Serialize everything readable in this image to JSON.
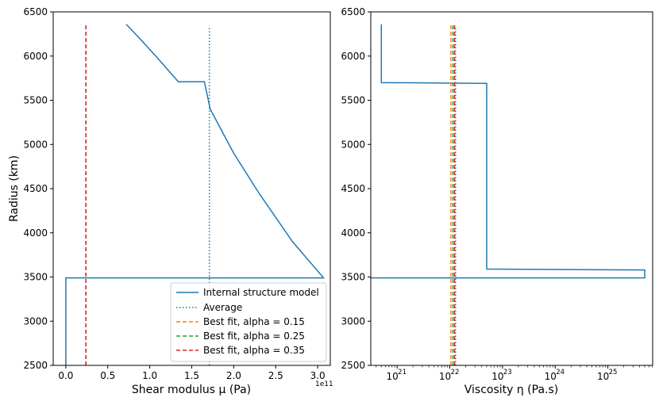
{
  "colors": {
    "model": "#1f77b4",
    "average": "#1f77b4",
    "fit015": "#ff7f0e",
    "fit025": "#2ca02c",
    "fit035": "#d62728",
    "axis": "#000000"
  },
  "chart_data": [
    {
      "type": "line",
      "id": "left",
      "xlabel": "Shear modulus μ (Pa)",
      "ylabel": "Radius (km)",
      "x_offset_label": "1e11",
      "xlim": [
        -0.15,
        3.15
      ],
      "ylim": [
        2500,
        6500
      ],
      "x_ticks": [
        0.0,
        0.5,
        1.0,
        1.5,
        2.0,
        2.5,
        3.0
      ],
      "x_tick_labels": [
        "0.0",
        "0.5",
        "1.0",
        "1.5",
        "2.0",
        "2.5",
        "3.0"
      ],
      "y_ticks": [
        2500,
        3000,
        3500,
        4000,
        4500,
        5000,
        5500,
        6000,
        6500
      ],
      "y_tick_labels": [
        "2500",
        "3000",
        "3500",
        "4000",
        "4500",
        "5000",
        "5500",
        "6000",
        "6500"
      ],
      "series": [
        {
          "name": "Internal structure model",
          "style": "solid",
          "color_key": "model",
          "x": [
            0.0,
            0.0,
            3.07,
            2.7,
            2.3,
            2.0,
            1.72,
            1.65,
            1.34,
            1.1,
            0.9,
            0.72
          ],
          "y": [
            2500,
            3490,
            3490,
            3900,
            4450,
            4900,
            5400,
            5710,
            5710,
            5970,
            6180,
            6360
          ]
        },
        {
          "name": "Average",
          "style": "dotted",
          "color_key": "average",
          "x": [
            1.71,
            1.71
          ],
          "y": [
            2500,
            6340
          ]
        },
        {
          "name": "Best fit, alpha = 0.15",
          "style": "dashed",
          "color_key": "fit015",
          "x": [
            0.24,
            0.24
          ],
          "y": [
            2500,
            6360
          ]
        },
        {
          "name": "Best fit, alpha = 0.25",
          "style": "dashed",
          "color_key": "fit025",
          "x": [
            0.24,
            0.24
          ],
          "y": [
            2500,
            6360
          ]
        },
        {
          "name": "Best fit, alpha = 0.35",
          "style": "dashed",
          "color_key": "fit035",
          "x": [
            0.24,
            0.24
          ],
          "y": [
            2500,
            6360
          ]
        }
      ],
      "legend": {
        "position": "lower-right",
        "entries": [
          "Internal structure model",
          "Average",
          "Best fit, alpha = 0.15",
          "Best fit, alpha = 0.25",
          "Best fit, alpha = 0.35"
        ]
      }
    },
    {
      "type": "line",
      "id": "right",
      "xscale": "log",
      "xlabel": "Viscosity η (Pa.s)",
      "x_exp_ticks": [
        21,
        22,
        23,
        24,
        25
      ],
      "x_tick_labels": [
        "10",
        "10",
        "10",
        "10",
        "10"
      ],
      "x_tick_exponents": [
        "21",
        "22",
        "23",
        "24",
        "25"
      ],
      "xlim_log10": [
        20.5,
        25.85
      ],
      "ylim": [
        2500,
        6500
      ],
      "y_ticks": [
        2500,
        3000,
        3500,
        4000,
        4500,
        5000,
        5500,
        6000,
        6500
      ],
      "y_tick_labels": [
        "2500",
        "3000",
        "3500",
        "4000",
        "4500",
        "5000",
        "5500",
        "6000",
        "6500"
      ],
      "series": [
        {
          "name": "Internal structure model",
          "style": "solid",
          "color_key": "model",
          "log10x": [
            20.5,
            25.7,
            25.7,
            22.7,
            22.7,
            20.7,
            20.7
          ],
          "y": [
            3490,
            3490,
            3580,
            3590,
            5690,
            5700,
            6360
          ]
        },
        {
          "name": "Average",
          "style": "dotted",
          "color_key": "average",
          "log10x": [
            22.11,
            22.11
          ],
          "y": [
            2500,
            6340
          ]
        },
        {
          "name": "Best fit, alpha = 0.15",
          "style": "dashed",
          "color_key": "fit015",
          "log10x": [
            22.02,
            22.02
          ],
          "y": [
            2500,
            6360
          ]
        },
        {
          "name": "Best fit, alpha = 0.25",
          "style": "dashed",
          "color_key": "fit025",
          "log10x": [
            22.06,
            22.06
          ],
          "y": [
            2500,
            6360
          ]
        },
        {
          "name": "Best fit, alpha = 0.35",
          "style": "dashed",
          "color_key": "fit035",
          "log10x": [
            22.09,
            22.09
          ],
          "y": [
            2500,
            6360
          ]
        }
      ]
    }
  ]
}
